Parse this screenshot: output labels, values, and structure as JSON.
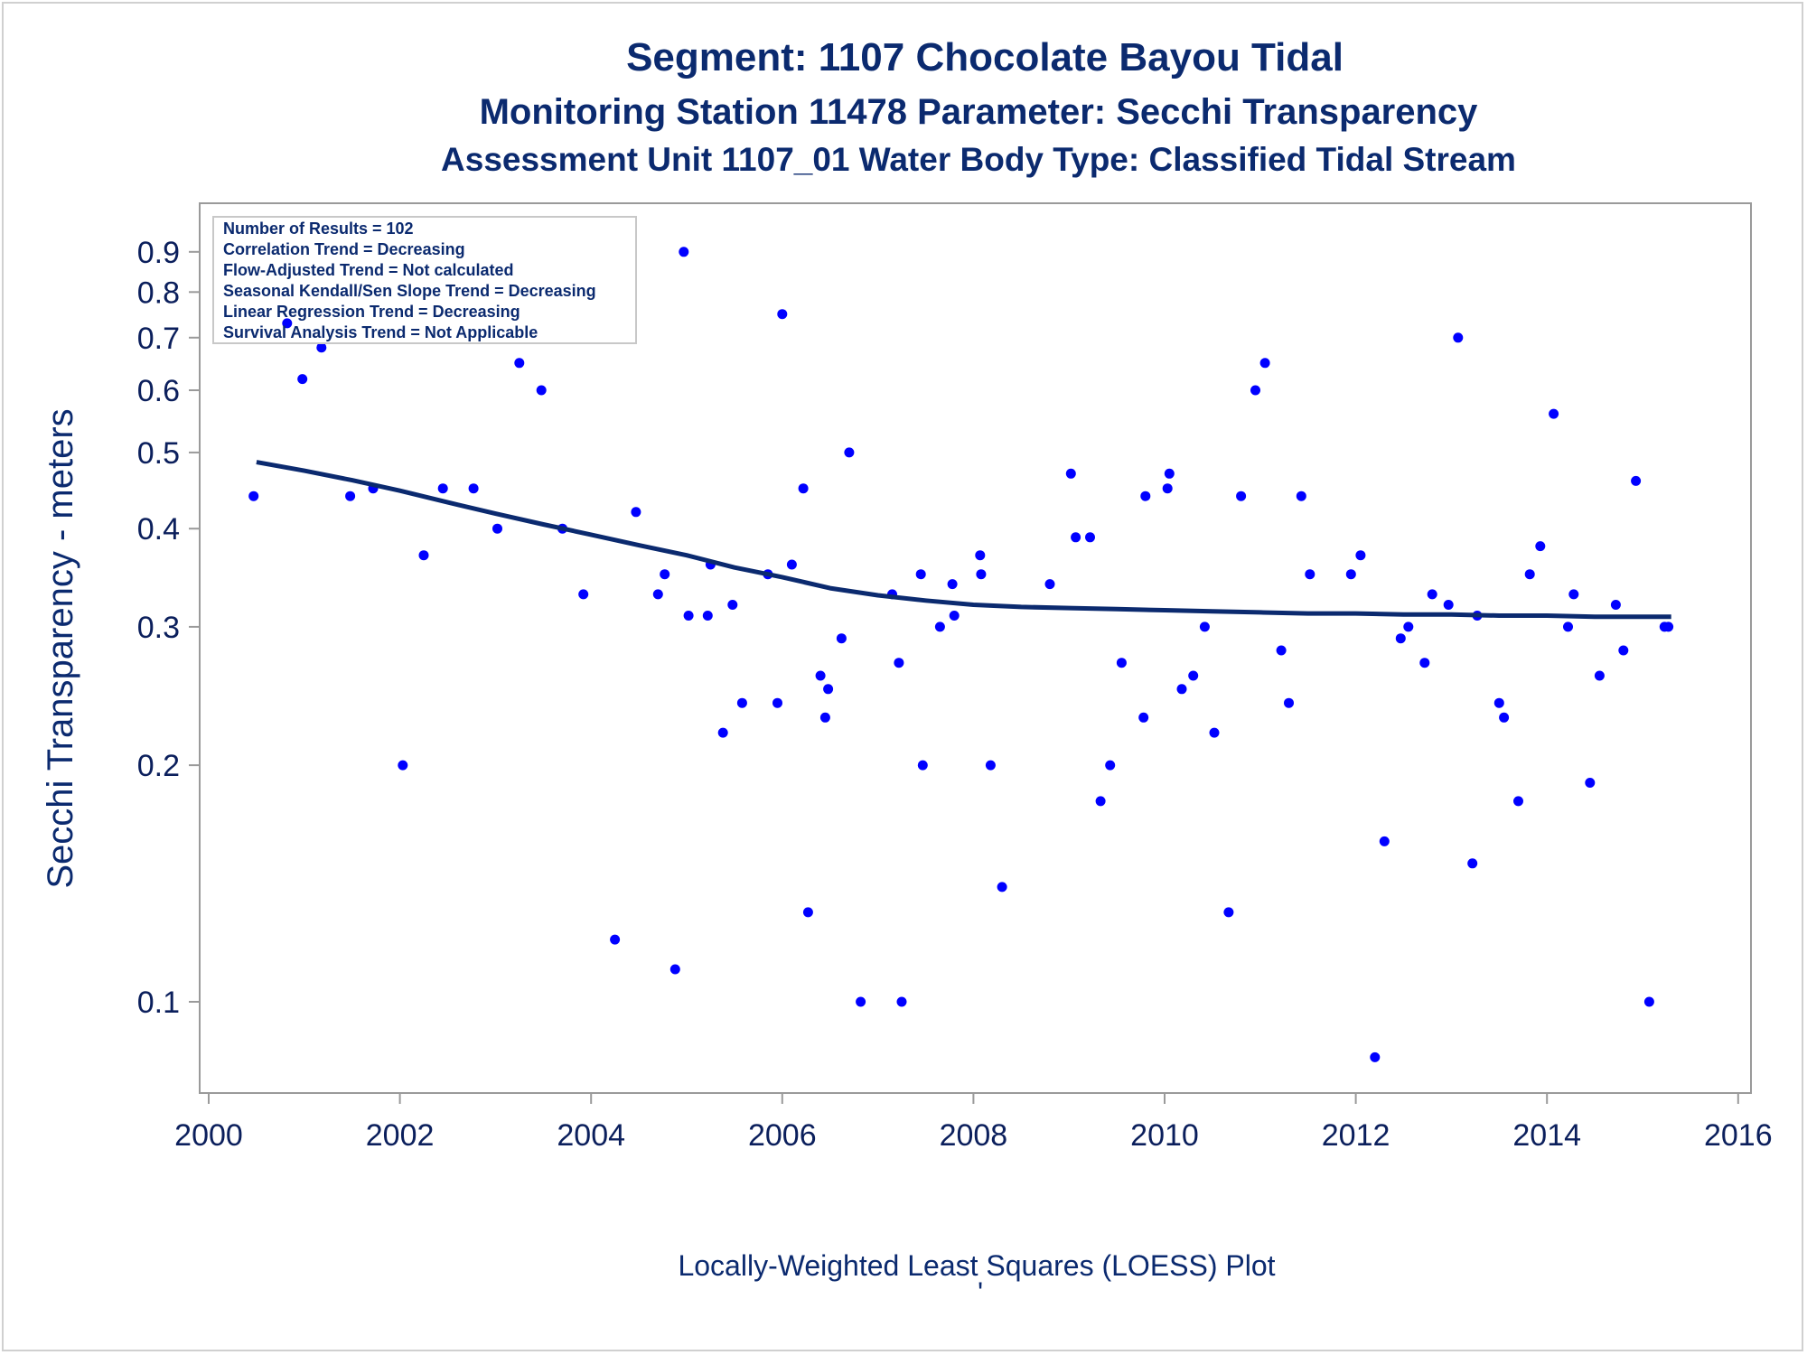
{
  "chart_data": {
    "type": "scatter",
    "title": "Segment: 1107  Chocolate Bayou Tidal",
    "subtitle": "Monitoring Station 11478 Parameter: Secchi Transparency",
    "subtitle2": "Assessment Unit 1107_01   Water Body Type: Classified Tidal Stream",
    "ylabel": "Secchi Transparency - meters",
    "footnote": "Locally-Weighted Least Squares (LOESS) Plot",
    "footnote_mark": "'",
    "y_scale": "log",
    "xlim": [
      2000,
      2016
    ],
    "ylim": [
      0.08,
      0.92
    ],
    "x_ticks": [
      2000,
      2002,
      2004,
      2006,
      2008,
      2010,
      2012,
      2014,
      2016
    ],
    "y_ticks": [
      0.1,
      0.2,
      0.3,
      0.4,
      0.5,
      0.6,
      0.7,
      0.8,
      0.9
    ],
    "y_tick_labels": [
      "0.1",
      "0.2",
      "0.3",
      "0.4",
      "0.5",
      "0.6",
      "0.7",
      "0.8",
      "0.9"
    ],
    "point_color": "#0000ff",
    "line_color": "#0b2a6f",
    "stats_box": [
      "Number of Results = 102",
      "Correlation Trend = Decreasing",
      "Flow-Adjusted Trend = Not calculated",
      "Seasonal Kendall/Sen Slope Trend = Decreasing",
      "Linear Regression Trend = Decreasing",
      "Survival Analysis Trend = Not Applicable"
    ],
    "points": [
      [
        2000.47,
        0.44
      ],
      [
        2000.82,
        0.73
      ],
      [
        2000.98,
        0.62
      ],
      [
        2001.18,
        0.68
      ],
      [
        2001.48,
        0.44
      ],
      [
        2001.72,
        0.45
      ],
      [
        2002.03,
        0.2
      ],
      [
        2002.25,
        0.37
      ],
      [
        2002.45,
        0.45
      ],
      [
        2002.77,
        0.45
      ],
      [
        2003.02,
        0.4
      ],
      [
        2003.25,
        0.65
      ],
      [
        2003.48,
        0.6
      ],
      [
        2003.7,
        0.4
      ],
      [
        2003.92,
        0.33
      ],
      [
        2004.25,
        0.12
      ],
      [
        2004.47,
        0.42
      ],
      [
        2004.7,
        0.33
      ],
      [
        2004.77,
        0.35
      ],
      [
        2004.88,
        0.11
      ],
      [
        2004.97,
        0.9
      ],
      [
        2005.02,
        0.31
      ],
      [
        2005.22,
        0.31
      ],
      [
        2005.25,
        0.36
      ],
      [
        2005.38,
        0.22
      ],
      [
        2005.48,
        0.32
      ],
      [
        2005.58,
        0.24
      ],
      [
        2005.85,
        0.35
      ],
      [
        2005.95,
        0.24
      ],
      [
        2006.0,
        0.75
      ],
      [
        2006.1,
        0.36
      ],
      [
        2006.22,
        0.45
      ],
      [
        2006.27,
        0.13
      ],
      [
        2006.4,
        0.26
      ],
      [
        2006.45,
        0.23
      ],
      [
        2006.48,
        0.25
      ],
      [
        2006.62,
        0.29
      ],
      [
        2006.7,
        0.5
      ],
      [
        2006.82,
        0.1
      ],
      [
        2007.15,
        0.33
      ],
      [
        2007.22,
        0.27
      ],
      [
        2007.25,
        0.1
      ],
      [
        2007.45,
        0.35
      ],
      [
        2007.47,
        0.2
      ],
      [
        2007.65,
        0.3
      ],
      [
        2007.78,
        0.34
      ],
      [
        2007.8,
        0.31
      ],
      [
        2008.07,
        0.37
      ],
      [
        2008.08,
        0.35
      ],
      [
        2008.18,
        0.2
      ],
      [
        2008.3,
        0.14
      ],
      [
        2008.8,
        0.34
      ],
      [
        2009.02,
        0.47
      ],
      [
        2009.07,
        0.39
      ],
      [
        2009.22,
        0.39
      ],
      [
        2009.33,
        0.18
      ],
      [
        2009.43,
        0.2
      ],
      [
        2009.55,
        0.27
      ],
      [
        2009.78,
        0.23
      ],
      [
        2009.8,
        0.44
      ],
      [
        2010.03,
        0.45
      ],
      [
        2010.05,
        0.47
      ],
      [
        2010.18,
        0.25
      ],
      [
        2010.3,
        0.26
      ],
      [
        2010.42,
        0.3
      ],
      [
        2010.52,
        0.22
      ],
      [
        2010.67,
        0.13
      ],
      [
        2010.8,
        0.44
      ],
      [
        2010.95,
        0.6
      ],
      [
        2011.05,
        0.65
      ],
      [
        2011.22,
        0.28
      ],
      [
        2011.3,
        0.24
      ],
      [
        2011.43,
        0.44
      ],
      [
        2011.52,
        0.35
      ],
      [
        2011.95,
        0.35
      ],
      [
        2012.05,
        0.37
      ],
      [
        2012.2,
        0.085
      ],
      [
        2012.3,
        0.16
      ],
      [
        2012.47,
        0.29
      ],
      [
        2012.55,
        0.3
      ],
      [
        2012.72,
        0.27
      ],
      [
        2012.8,
        0.33
      ],
      [
        2012.97,
        0.32
      ],
      [
        2013.07,
        0.7
      ],
      [
        2013.22,
        0.15
      ],
      [
        2013.27,
        0.31
      ],
      [
        2013.5,
        0.24
      ],
      [
        2013.55,
        0.23
      ],
      [
        2013.7,
        0.18
      ],
      [
        2013.82,
        0.35
      ],
      [
        2013.93,
        0.38
      ],
      [
        2014.07,
        0.56
      ],
      [
        2014.22,
        0.3
      ],
      [
        2014.28,
        0.33
      ],
      [
        2014.45,
        0.19
      ],
      [
        2014.55,
        0.26
      ],
      [
        2014.72,
        0.32
      ],
      [
        2014.8,
        0.28
      ],
      [
        2014.93,
        0.46
      ],
      [
        2015.07,
        0.1
      ],
      [
        2015.23,
        0.3
      ],
      [
        2015.27,
        0.3
      ]
    ],
    "loess": [
      [
        2000.5,
        0.486
      ],
      [
        2001.0,
        0.474
      ],
      [
        2001.5,
        0.461
      ],
      [
        2002.0,
        0.447
      ],
      [
        2002.5,
        0.432
      ],
      [
        2003.0,
        0.418
      ],
      [
        2003.5,
        0.405
      ],
      [
        2004.0,
        0.393
      ],
      [
        2004.5,
        0.381
      ],
      [
        2005.0,
        0.37
      ],
      [
        2005.5,
        0.357
      ],
      [
        2006.0,
        0.347
      ],
      [
        2006.5,
        0.336
      ],
      [
        2007.0,
        0.329
      ],
      [
        2007.5,
        0.324
      ],
      [
        2008.0,
        0.32
      ],
      [
        2008.5,
        0.318
      ],
      [
        2009.0,
        0.317
      ],
      [
        2009.5,
        0.316
      ],
      [
        2010.0,
        0.315
      ],
      [
        2010.5,
        0.314
      ],
      [
        2011.0,
        0.313
      ],
      [
        2011.5,
        0.312
      ],
      [
        2012.0,
        0.312
      ],
      [
        2012.5,
        0.311
      ],
      [
        2013.0,
        0.311
      ],
      [
        2013.5,
        0.31
      ],
      [
        2014.0,
        0.31
      ],
      [
        2014.5,
        0.309
      ],
      [
        2015.0,
        0.309
      ],
      [
        2015.3,
        0.309
      ]
    ]
  }
}
